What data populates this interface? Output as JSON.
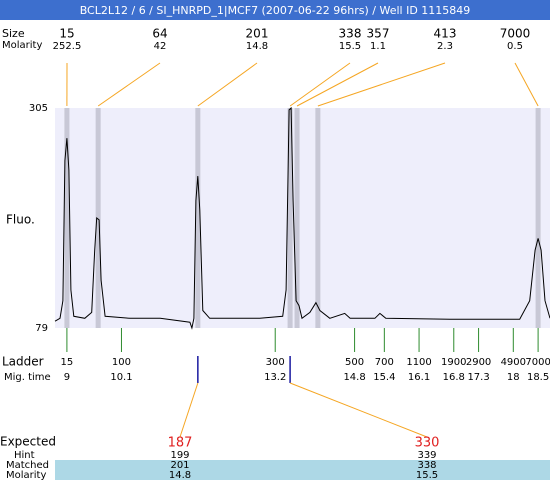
{
  "chart_data": {
    "type": "line",
    "title": "BCL2L12 / 6 / SI_HNRPD_1|MCF7 (2007-06-22 96hrs) / Well ID 1115849",
    "ylabel": "Fluo.",
    "ylim": [
      79,
      305
    ],
    "yticks": [
      79,
      305
    ],
    "xlim": [
      8.76,
      18.74
    ],
    "color": "#000000",
    "x": [
      8.76,
      8.86,
      8.92,
      8.96,
      9.0,
      9.04,
      9.08,
      9.14,
      9.36,
      9.5,
      9.56,
      9.6,
      9.65,
      9.69,
      9.77,
      10.27,
      10.88,
      11.48,
      11.52,
      11.56,
      11.6,
      11.64,
      11.68,
      11.74,
      11.88,
      12.89,
      13.35,
      13.42,
      13.48,
      13.52,
      13.56,
      13.62,
      13.68,
      13.74,
      13.9,
      14.02,
      14.1,
      14.3,
      14.6,
      14.71,
      15.21,
      15.31,
      15.43,
      16.72,
      18.13,
      18.33,
      18.44,
      18.5,
      18.56,
      18.64,
      18.74
    ],
    "values": [
      86,
      89,
      107,
      251,
      274,
      241,
      118,
      91,
      89,
      95,
      159,
      192,
      190,
      128,
      91,
      89,
      89,
      85,
      79,
      89,
      210,
      235,
      200,
      97,
      89,
      89,
      91,
      118,
      303,
      305,
      210,
      107,
      102,
      89,
      95,
      105,
      97,
      89,
      94,
      89,
      89,
      94,
      89,
      88,
      88,
      107,
      159,
      171,
      159,
      107,
      89
    ]
  },
  "peaks": {
    "size_label": "Size",
    "molarity_label": "Molarity",
    "sizes": [
      15,
      64,
      201,
      338,
      357,
      413,
      7000
    ],
    "molarities": [
      252.5,
      42,
      14.8,
      15.5,
      1.1,
      2.3,
      0.5
    ],
    "times": [
      9.0,
      9.63,
      11.64,
      13.5,
      13.64,
      14.06,
      18.5
    ]
  },
  "ladder": {
    "label": "Ladder",
    "time_label": "Mig. time",
    "sizes": [
      15,
      100,
      300,
      500,
      700,
      1100,
      1900,
      2900,
      4900,
      7000
    ],
    "times": [
      9,
      10.1,
      13.2,
      14.8,
      15.4,
      16.1,
      16.8,
      17.3,
      18,
      18.5
    ]
  },
  "expected": {
    "expected_label": "Expected",
    "hint_label": "Hint",
    "matched_label": "Matched",
    "molarity_label": "Molarity",
    "expected": [
      187,
      330
    ],
    "hint": [
      199,
      339
    ],
    "matched": [
      201,
      338
    ],
    "molarity": [
      14.8,
      15.5
    ],
    "times": [
      11.64,
      13.5
    ]
  }
}
